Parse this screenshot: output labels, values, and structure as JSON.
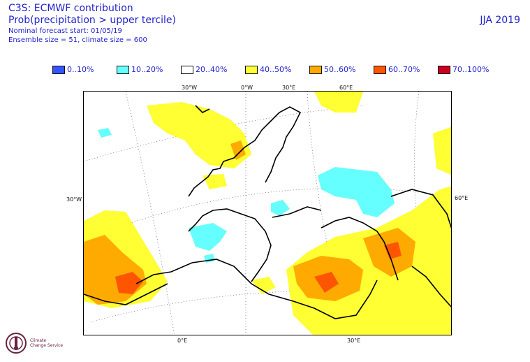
{
  "header": {
    "title": "C3S: ECMWF contribution",
    "subtitle": "Prob(precipitation > upper tercile)",
    "line3": "Nominal forecast start: 01/05/19",
    "line4": "Ensemble size = 51, climate size = 600",
    "season": "JJA 2019"
  },
  "legend": [
    {
      "label": "0..10%",
      "color": "#3355ff"
    },
    {
      "label": "10..20%",
      "color": "#66ffff"
    },
    {
      "label": "20..40%",
      "color": "#ffffff"
    },
    {
      "label": "40..50%",
      "color": "#ffff33"
    },
    {
      "label": "50..60%",
      "color": "#ffaa00"
    },
    {
      "label": "60..70%",
      "color": "#ff5500"
    },
    {
      "label": "70..100%",
      "color": "#cc0022"
    }
  ],
  "axes": {
    "top": [
      "30°W",
      "0°W",
      "30°E",
      "60°E"
    ],
    "left": "30°W",
    "right": "60°E",
    "bottom": [
      "0°E",
      "30°E"
    ]
  },
  "logo": {
    "line1": "Climate",
    "line2": "Change Service"
  }
}
